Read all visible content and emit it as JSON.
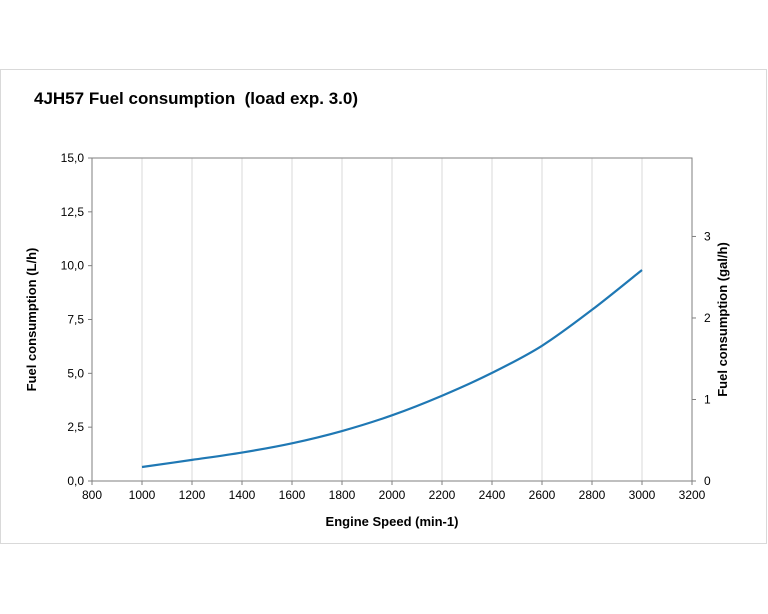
{
  "chart_data": {
    "type": "line",
    "title": "4JH57 Fuel consumption  (load exp. 3.0)",
    "xlabel": "Engine Speed (min-1)",
    "ylabel": "Fuel consumption (L/h)",
    "y2label": "Fuel consumption (gal/h)",
    "xlim": [
      800,
      3200
    ],
    "ylim": [
      0,
      15
    ],
    "y2lim": [
      0,
      3.9626
    ],
    "x_ticks": [
      "800",
      "1000",
      "1200",
      "1400",
      "1600",
      "1800",
      "2000",
      "2200",
      "2400",
      "2600",
      "2800",
      "3000",
      "3200"
    ],
    "y_ticks": [
      "0,0",
      "2,5",
      "5,0",
      "7,5",
      "10,0",
      "12,5",
      "15,0"
    ],
    "y2_ticks": [
      "0",
      "1",
      "2",
      "3"
    ],
    "grid": "vertical",
    "line_color": "#1f78b4",
    "series": [
      {
        "x": [
          1000,
          1200,
          1400,
          1600,
          1800,
          2000,
          2200,
          2400,
          2600,
          2800,
          3000
        ],
        "values": [
          0.65,
          0.98,
          1.32,
          1.75,
          2.32,
          3.05,
          3.96,
          5.02,
          6.28,
          7.95,
          9.8
        ]
      }
    ]
  }
}
